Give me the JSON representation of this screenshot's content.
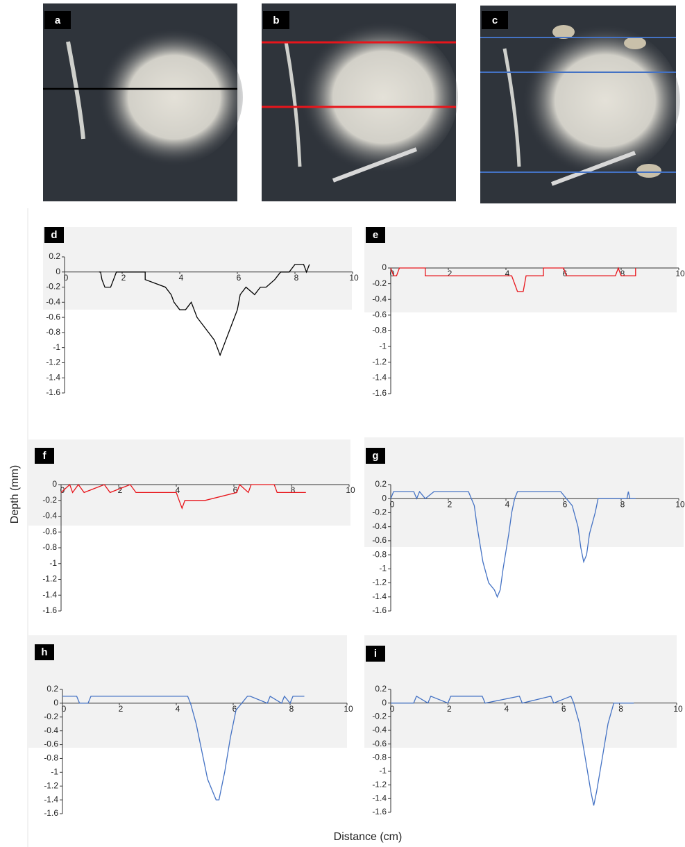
{
  "photos": [
    {
      "label": "a"
    },
    {
      "label": "b"
    },
    {
      "label": "c"
    }
  ],
  "ylabel": "Depth (mm)",
  "xlabel": "Distance (cm)",
  "chart_data": [
    {
      "type": "line",
      "label": "d",
      "xlim": [
        0,
        10
      ],
      "xticks": [
        0,
        2,
        4,
        6,
        8,
        10
      ],
      "ylim": [
        -1.6,
        0.2
      ],
      "yticks": [
        0.2,
        0,
        -0.2,
        -0.4,
        -0.6,
        -0.8,
        -1,
        -1.2,
        -1.4,
        -1.6
      ],
      "x": [
        1.2,
        1.25,
        1.3,
        1.4,
        1.6,
        1.7,
        1.8,
        2.8,
        2.8,
        3.5,
        3.7,
        3.8,
        4.0,
        4.2,
        4.4,
        4.6,
        4.8,
        5.0,
        5.2,
        5.3,
        5.4,
        5.5,
        5.6,
        5.8,
        6.0,
        6.1,
        6.3,
        6.6,
        6.8,
        7.0,
        7.3,
        7.5,
        7.8,
        8.0,
        8.3,
        8.4,
        8.5
      ],
      "series": [
        {
          "color": "#000000",
          "values": [
            0,
            0,
            -0.1,
            -0.2,
            -0.2,
            -0.1,
            0,
            0,
            -0.1,
            -0.2,
            -0.3,
            -0.4,
            -0.5,
            -0.5,
            -0.4,
            -0.6,
            -0.7,
            -0.8,
            -0.9,
            -1.0,
            -1.1,
            -1.0,
            -0.9,
            -0.7,
            -0.5,
            -0.3,
            -0.2,
            -0.3,
            -0.2,
            -0.2,
            -0.1,
            0,
            0,
            0.1,
            0.1,
            0,
            0.1
          ]
        }
      ]
    },
    {
      "type": "line",
      "label": "e",
      "xlim": [
        0,
        10
      ],
      "xticks": [
        0,
        2,
        4,
        6,
        8,
        10
      ],
      "ylim": [
        -1.6,
        0
      ],
      "yticks": [
        0,
        -0.2,
        -0.4,
        -0.6,
        -0.8,
        -1,
        -1.2,
        -1.4,
        -1.6
      ],
      "x": [
        0,
        0.1,
        0.2,
        0.3,
        1.2,
        1.2,
        4.2,
        4.3,
        4.4,
        4.6,
        4.7,
        5.3,
        5.3,
        6.0,
        6.1,
        6.2,
        7.8,
        7.9,
        8.0,
        8.5,
        8.5
      ],
      "series": [
        {
          "color": "#e8151b",
          "values": [
            0,
            -0.1,
            -0.1,
            0,
            0,
            -0.1,
            -0.1,
            -0.2,
            -0.3,
            -0.3,
            -0.1,
            -0.1,
            0,
            0,
            -0.1,
            -0.1,
            -0.1,
            0,
            -0.1,
            -0.1,
            0
          ]
        }
      ]
    },
    {
      "type": "line",
      "label": "f",
      "xlim": [
        0,
        10
      ],
      "xticks": [
        0,
        2,
        4,
        6,
        8,
        10
      ],
      "ylim": [
        -1.6,
        0
      ],
      "yticks": [
        0,
        -0.2,
        -0.4,
        -0.6,
        -0.8,
        -1,
        -1.2,
        -1.4,
        -1.6
      ],
      "x": [
        0,
        0.3,
        0.4,
        0.6,
        0.8,
        1.5,
        1.7,
        2.4,
        2.6,
        4.0,
        4.1,
        4.2,
        4.3,
        5.0,
        6.1,
        6.2,
        6.5,
        6.6,
        7.4,
        7.5,
        8.5
      ],
      "series": [
        {
          "color": "#e8151b",
          "values": [
            -0.1,
            0,
            -0.1,
            0,
            -0.1,
            0,
            -0.1,
            0,
            -0.1,
            -0.1,
            -0.2,
            -0.3,
            -0.2,
            -0.2,
            -0.1,
            0,
            -0.1,
            0,
            0,
            -0.1,
            -0.1
          ]
        }
      ]
    },
    {
      "type": "line",
      "label": "g",
      "xlim": [
        0,
        10
      ],
      "xticks": [
        0,
        2,
        4,
        6,
        8,
        10
      ],
      "ylim": [
        -1.6,
        0.2
      ],
      "yticks": [
        0.2,
        0,
        -0.2,
        -0.4,
        -0.6,
        -0.8,
        -1,
        -1.2,
        -1.4,
        -1.6
      ],
      "x": [
        0,
        0.1,
        0.8,
        0.9,
        1.0,
        1.2,
        1.5,
        2.7,
        2.8,
        2.9,
        3.0,
        3.2,
        3.4,
        3.6,
        3.7,
        3.8,
        3.9,
        4.1,
        4.2,
        4.3,
        4.4,
        5.9,
        6.1,
        6.3,
        6.5,
        6.6,
        6.7,
        6.8,
        6.9,
        7.1,
        7.2,
        7.4,
        8.2,
        8.25,
        8.3,
        8.5
      ],
      "series": [
        {
          "color": "#4472c4",
          "values": [
            0,
            0.1,
            0.1,
            0,
            0.1,
            0,
            0.1,
            0.1,
            0,
            -0.1,
            -0.4,
            -0.9,
            -1.2,
            -1.3,
            -1.4,
            -1.3,
            -1.0,
            -0.5,
            -0.2,
            0,
            0.1,
            0.1,
            0,
            -0.1,
            -0.4,
            -0.7,
            -0.9,
            -0.8,
            -0.5,
            -0.2,
            0,
            0,
            0,
            0.1,
            0,
            0
          ]
        }
      ]
    },
    {
      "type": "line",
      "label": "h",
      "xlim": [
        0,
        10
      ],
      "xticks": [
        0,
        2,
        4,
        6,
        8,
        10
      ],
      "ylim": [
        -1.6,
        0.2
      ],
      "yticks": [
        0.2,
        0,
        -0.2,
        -0.4,
        -0.6,
        -0.8,
        -1,
        -1.2,
        -1.4,
        -1.6
      ],
      "x": [
        0,
        0.5,
        0.6,
        0.9,
        1.0,
        4.4,
        4.5,
        4.7,
        4.9,
        5.1,
        5.3,
        5.4,
        5.5,
        5.7,
        5.9,
        6.1,
        6.3,
        6.5,
        6.6,
        7.2,
        7.3,
        7.7,
        7.8,
        8.0,
        8.1,
        8.5
      ],
      "series": [
        {
          "color": "#4472c4",
          "values": [
            0.1,
            0.1,
            0,
            0,
            0.1,
            0.1,
            0,
            -0.3,
            -0.7,
            -1.1,
            -1.3,
            -1.4,
            -1.4,
            -1.0,
            -0.5,
            -0.1,
            0,
            0.1,
            0.1,
            0,
            0.1,
            0,
            0.1,
            0,
            0.1,
            0.1
          ]
        }
      ]
    },
    {
      "type": "line",
      "label": "i",
      "xlim": [
        0,
        10
      ],
      "xticks": [
        0,
        2,
        4,
        6,
        8,
        10
      ],
      "ylim": [
        -1.6,
        0.2
      ],
      "yticks": [
        0.2,
        0,
        -0.2,
        -0.4,
        -0.6,
        -0.8,
        -1,
        -1.2,
        -1.4,
        -1.6
      ],
      "x": [
        0,
        0.8,
        0.9,
        1.3,
        1.4,
        2.0,
        2.1,
        3.2,
        3.3,
        4.5,
        4.6,
        5.6,
        5.7,
        6.3,
        6.4,
        6.6,
        6.8,
        7.0,
        7.1,
        7.2,
        7.4,
        7.6,
        7.8,
        7.9,
        8.5
      ],
      "series": [
        {
          "color": "#4472c4",
          "values": [
            0,
            0,
            0.1,
            0,
            0.1,
            0,
            0.1,
            0.1,
            0,
            0.1,
            0,
            0.1,
            0,
            0.1,
            0,
            -0.3,
            -0.8,
            -1.3,
            -1.5,
            -1.3,
            -0.8,
            -0.3,
            0,
            0,
            0
          ]
        }
      ]
    }
  ]
}
